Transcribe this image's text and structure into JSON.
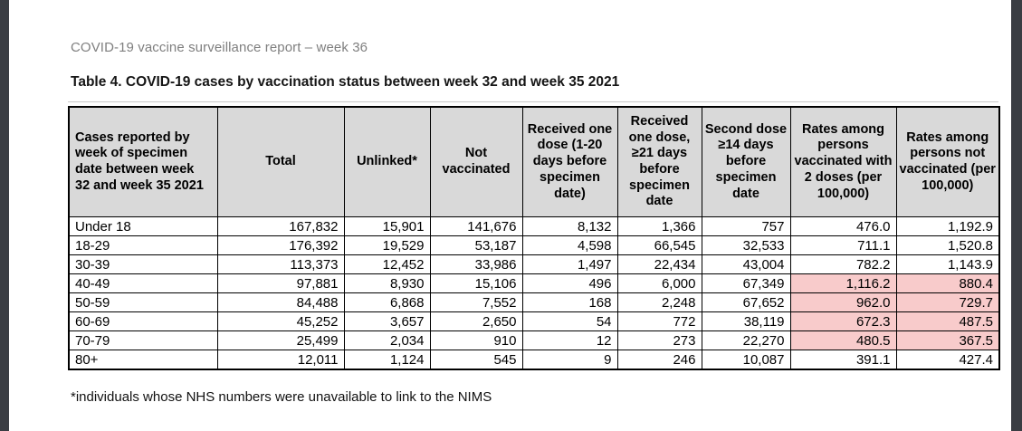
{
  "page": {
    "report_header": "COVID-19 vaccine surveillance report – week 36",
    "table_title": "Table 4. COVID-19 cases by vaccination status between week 32 and week 35 2021",
    "footnote": "*individuals whose NHS numbers were unavailable to link to the NIMS"
  },
  "table": {
    "columns": [
      "Cases reported by week of specimen date between week 32 and week 35 2021",
      "Total",
      "Unlinked*",
      "Not vaccinated",
      "Received one dose (1-20 days before specimen date)",
      "Received one dose, ≥21 days before specimen date",
      "Second dose ≥14 days before specimen date",
      "Rates among persons vaccinated with 2 doses (per 100,000)",
      "Rates among persons not vaccinated (per 100,000)"
    ],
    "rows": [
      {
        "label": "Under 18",
        "values": [
          "167,832",
          "15,901",
          "141,676",
          "8,132",
          "1,366",
          "757",
          "476.0",
          "1,192.9"
        ],
        "rates_highlighted": false
      },
      {
        "label": "18-29",
        "values": [
          "176,392",
          "19,529",
          "53,187",
          "4,598",
          "66,545",
          "32,533",
          "711.1",
          "1,520.8"
        ],
        "rates_highlighted": false
      },
      {
        "label": "30-39",
        "values": [
          "113,373",
          "12,452",
          "33,986",
          "1,497",
          "22,434",
          "43,004",
          "782.2",
          "1,143.9"
        ],
        "rates_highlighted": false
      },
      {
        "label": "40-49",
        "values": [
          "97,881",
          "8,930",
          "15,106",
          "496",
          "6,000",
          "67,349",
          "1,116.2",
          "880.4"
        ],
        "rates_highlighted": true
      },
      {
        "label": "50-59",
        "values": [
          "84,488",
          "6,868",
          "7,552",
          "168",
          "2,248",
          "67,652",
          "962.0",
          "729.7"
        ],
        "rates_highlighted": true
      },
      {
        "label": "60-69",
        "values": [
          "45,252",
          "3,657",
          "2,650",
          "54",
          "772",
          "38,119",
          "672.3",
          "487.5"
        ],
        "rates_highlighted": true
      },
      {
        "label": "70-79",
        "values": [
          "25,499",
          "2,034",
          "910",
          "12",
          "273",
          "22,270",
          "480.5",
          "367.5"
        ],
        "rates_highlighted": true
      },
      {
        "label": "80+",
        "values": [
          "12,011",
          "1,124",
          "545",
          "9",
          "246",
          "10,087",
          "391.1",
          "427.4"
        ],
        "rates_highlighted": false
      }
    ]
  },
  "colors": {
    "header_cell_bg": "#d9d9d9",
    "rate_highlight_bg": "#f8cbcb",
    "edge_bar": "#3a3d43",
    "muted_header_text": "#7f7f7f",
    "table_border": "#000000"
  }
}
